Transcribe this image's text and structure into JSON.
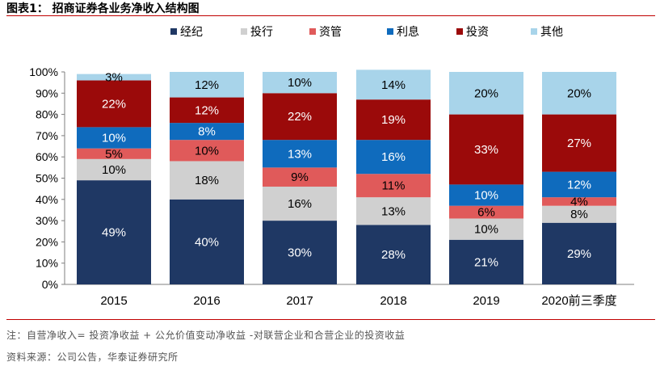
{
  "figure": {
    "title": "图表1： 招商证券各业务净收入结构图",
    "note": "注：自营净收入= 投资净收益 + 公允价值变动净收益 -对联营企业和合营企业的投资收益",
    "source": "资料来源：公司公告，华泰证券研究所"
  },
  "colors": {
    "rule": "#c00000",
    "series": [
      "#1f3864",
      "#d0d0d0",
      "#e05a5a",
      "#0f6bbd",
      "#9b0a0a",
      "#a8d4ea"
    ]
  },
  "chart_data": {
    "type": "bar",
    "stacked": true,
    "categories": [
      "2015",
      "2016",
      "2017",
      "2018",
      "2019",
      "2020前三季度"
    ],
    "series": [
      {
        "name": "经纪",
        "values": [
          49,
          40,
          30,
          28,
          21,
          29
        ],
        "labels": [
          "49%",
          "40%",
          "30%",
          "28%",
          "21%",
          "29%"
        ]
      },
      {
        "name": "投行",
        "values": [
          10,
          18,
          16,
          13,
          10,
          8
        ],
        "labels": [
          "10%",
          "18%",
          "16%",
          "13%",
          "10%",
          "8%"
        ]
      },
      {
        "name": "资管",
        "values": [
          5,
          10,
          9,
          11,
          6,
          4
        ],
        "labels": [
          "5%",
          "10%",
          "9%",
          "11%",
          "6%",
          "4%"
        ]
      },
      {
        "name": "利息",
        "values": [
          10,
          8,
          13,
          16,
          10,
          12
        ],
        "labels": [
          "10%",
          "8%",
          "13%",
          "16%",
          "10%",
          "12%"
        ]
      },
      {
        "name": "投资",
        "values": [
          22,
          12,
          22,
          19,
          33,
          27
        ],
        "labels": [
          "22%",
          "12%",
          "22%",
          "19%",
          "33%",
          "27%"
        ]
      },
      {
        "name": "其他",
        "values": [
          3,
          12,
          10,
          14,
          20,
          20
        ],
        "labels": [
          "3%",
          "12%",
          "10%",
          "14%",
          "20%",
          "20%"
        ]
      }
    ],
    "yticks": [
      "0%",
      "10%",
      "20%",
      "30%",
      "40%",
      "50%",
      "60%",
      "70%",
      "80%",
      "90%",
      "100%"
    ],
    "ylim": [
      0,
      100
    ],
    "legend_position": "top",
    "grid": false
  }
}
